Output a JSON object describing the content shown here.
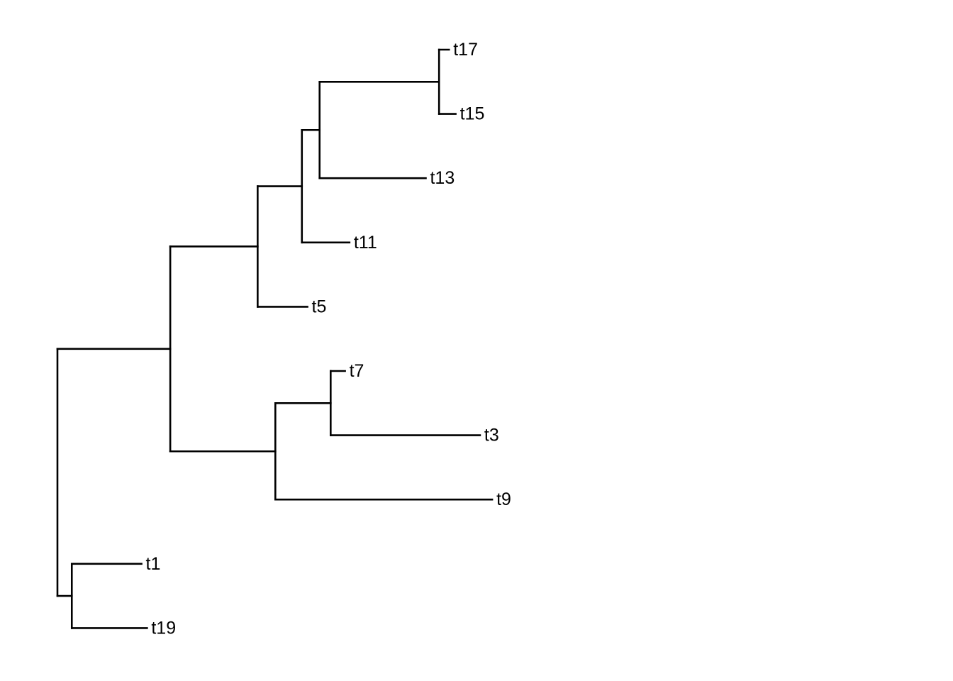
{
  "tree": {
    "id": "root",
    "children": [
      {
        "id": "n1",
        "children": [
          {
            "id": "n2",
            "children": [
              {
                "id": "n3",
                "children": [
                  {
                    "id": "n4",
                    "children": [
                      {
                        "id": "n5",
                        "children": [
                          {
                            "label": "t17",
                            "length": 0.9
                          },
                          {
                            "label": "t15",
                            "length": 1.5
                          }
                        ],
                        "length": 10.8
                      },
                      {
                        "label": "t13",
                        "length": 9.6
                      }
                    ],
                    "length": 1.6
                  },
                  {
                    "label": "t11",
                    "length": 4.3
                  }
                ],
                "length": 4.0
              },
              {
                "label": "t5",
                "length": 4.5
              }
            ],
            "length": 7.9
          },
          {
            "id": "n6",
            "children": [
              {
                "id": "n7",
                "children": [
                  {
                    "label": "t7",
                    "length": 1.3
                  },
                  {
                    "label": "t3",
                    "length": 13.5
                  }
                ],
                "length": 5.0
              },
              {
                "label": "t9",
                "length": 19.6
              }
            ],
            "length": 9.5
          }
        ],
        "length": 10.2
      },
      {
        "id": "n8",
        "children": [
          {
            "label": "t1",
            "length": 6.3
          },
          {
            "label": "t19",
            "length": 6.8
          }
        ],
        "length": 1.3
      }
    ]
  },
  "tip_order": [
    "t17",
    "t15",
    "t13",
    "t11",
    "t5",
    "t7",
    "t3",
    "t9",
    "t1",
    "t19"
  ],
  "style": {
    "edge_color": "#000000",
    "label_color": "#000000",
    "background": "#ffffff"
  }
}
